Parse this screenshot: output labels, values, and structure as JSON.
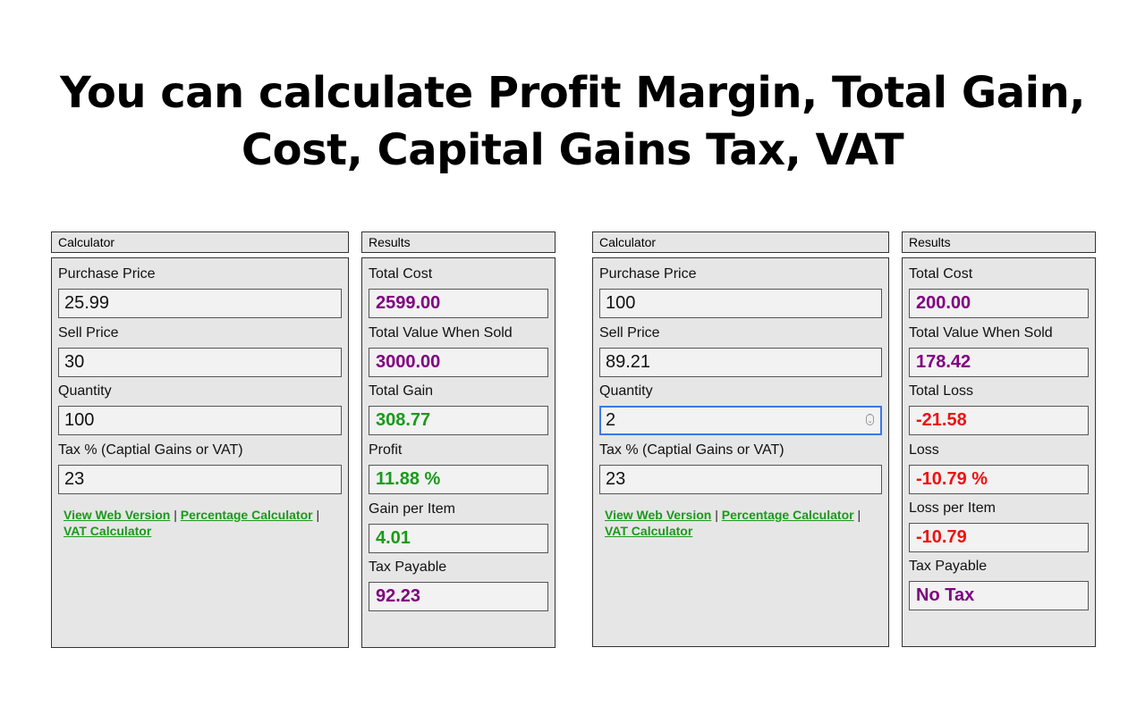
{
  "headline": {
    "line1": "You can calculate Profit Margin, Total Gain,",
    "line2": "Cost, Capital Gains Tax, VAT"
  },
  "colors": {
    "neutral_value": "#800080",
    "positive_value": "#1a9a1a",
    "negative_value": "#ee1111",
    "focus_border": "#3b78e7"
  },
  "example1": {
    "calculator": {
      "title": "Calculator",
      "purchase_price_label": "Purchase Price",
      "purchase_price_value": "25.99",
      "sell_price_label": "Sell Price",
      "sell_price_value": "30",
      "quantity_label": "Quantity",
      "quantity_value": "100",
      "tax_label": "Tax % (Captial Gains or VAT)",
      "tax_value": "23",
      "links": {
        "web_version": "View Web Version",
        "sep1": "|",
        "percentage_calculator": "Percentage Calculator",
        "sep2": "|",
        "vat_calculator": "VAT Calculator"
      }
    },
    "results": {
      "title": "Results",
      "total_cost_label": "Total Cost",
      "total_cost_value": "2599.00",
      "total_value_label": "Total Value When Sold",
      "total_value_value": "3000.00",
      "gain_label": "Total Gain",
      "gain_value": "308.77",
      "profit_label": "Profit",
      "profit_value": "11.88 %",
      "per_item_label": "Gain per Item",
      "per_item_value": "4.01",
      "tax_payable_label": "Tax Payable",
      "tax_payable_value": "92.23"
    }
  },
  "example2": {
    "calculator": {
      "title": "Calculator",
      "purchase_price_label": "Purchase Price",
      "purchase_price_value": "100",
      "sell_price_label": "Sell Price",
      "sell_price_value": "89.21",
      "quantity_label": "Quantity",
      "quantity_value": "2",
      "tax_label": "Tax % (Captial Gains or VAT)",
      "tax_value": "23",
      "links": {
        "web_version": "View Web Version",
        "sep1": "|",
        "percentage_calculator": "Percentage Calculator",
        "sep2": "|",
        "vat_calculator": "VAT Calculator"
      }
    },
    "results": {
      "title": "Results",
      "total_cost_label": "Total Cost",
      "total_cost_value": "200.00",
      "total_value_label": "Total Value When Sold",
      "total_value_value": "178.42",
      "gain_label": "Total Loss",
      "gain_value": "-21.58",
      "profit_label": "Loss",
      "profit_value": "-10.79 %",
      "per_item_label": "Loss per Item",
      "per_item_value": "-10.79",
      "tax_payable_label": "Tax Payable",
      "tax_payable_value": "No Tax"
    }
  }
}
